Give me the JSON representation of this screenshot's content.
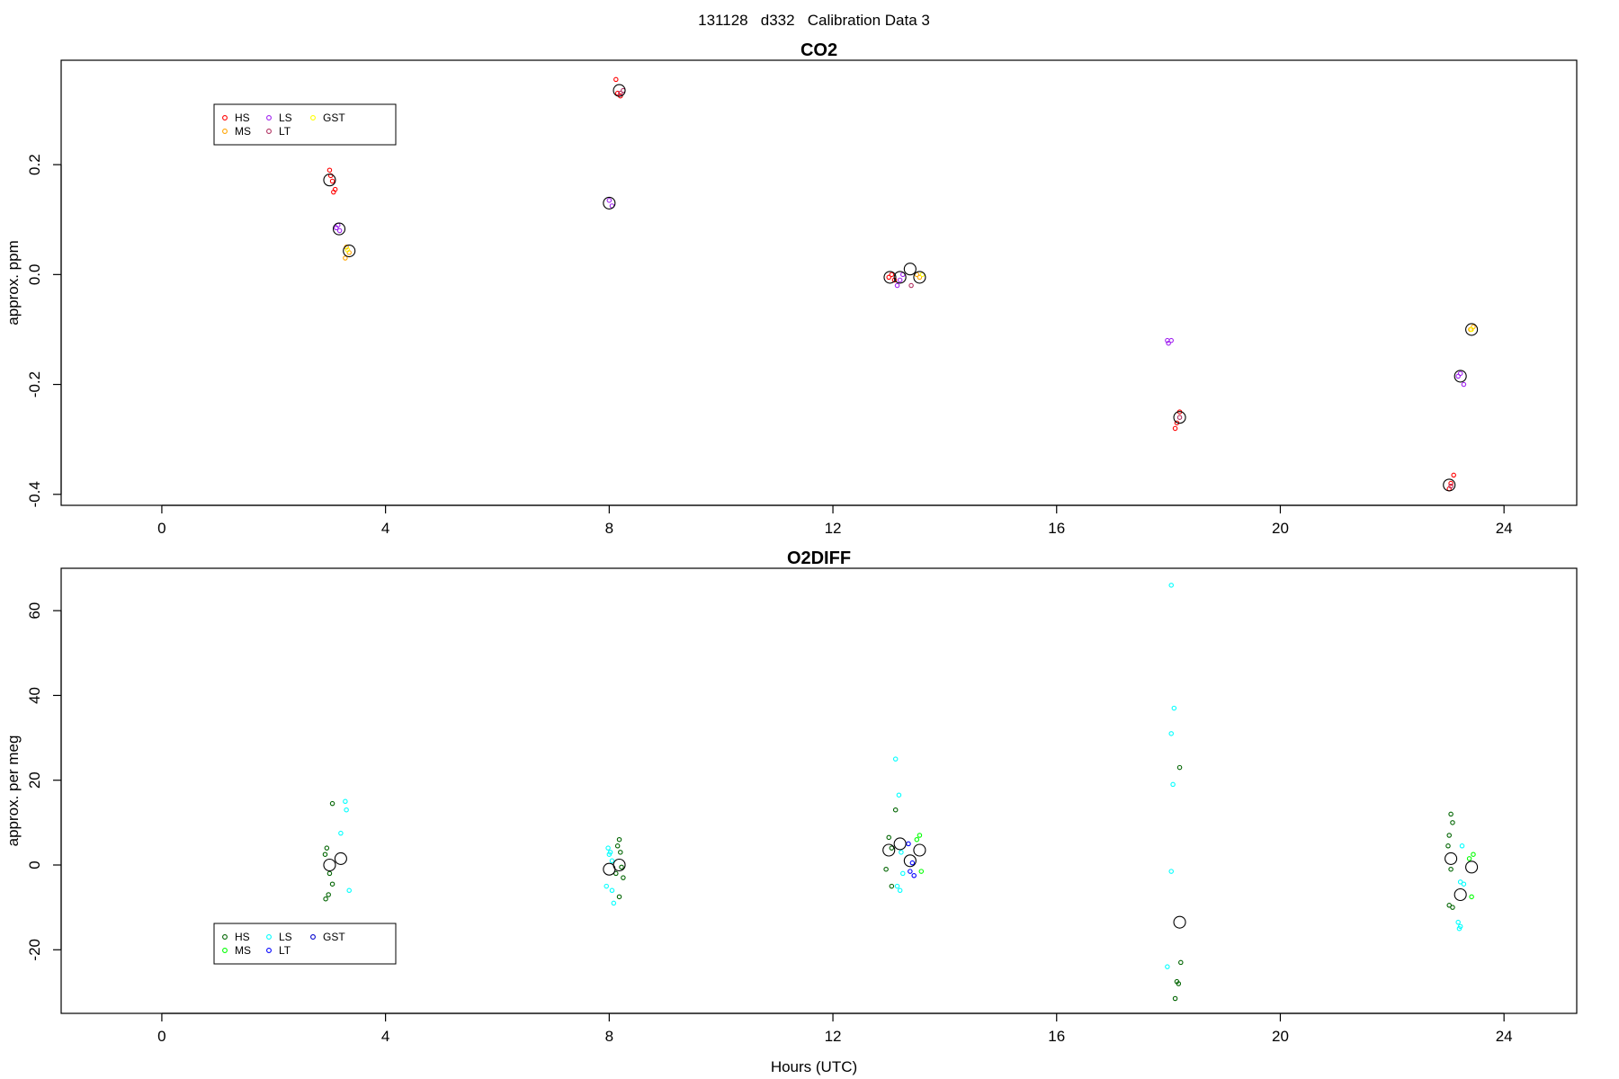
{
  "figure": {
    "suptitle": "131128   d332   Calibration Data 3",
    "xlabel": "Hours (UTC)"
  },
  "chart_data": [
    {
      "type": "scatter",
      "title": "CO2",
      "xlabel": "",
      "ylabel": "approx. ppm",
      "xlim": [
        -1.8,
        25.3
      ],
      "ylim": [
        -0.42,
        0.39
      ],
      "xticks": [
        0,
        4,
        8,
        12,
        16,
        20,
        24
      ],
      "yticks": [
        -0.4,
        -0.2,
        0.0,
        0.2
      ],
      "ytick_labels": [
        "-0.4",
        "-0.2",
        "0.0",
        "0.2"
      ],
      "grid": false,
      "legend": {
        "placement": "top-left",
        "entries": [
          {
            "label": "HS",
            "color": "#ff0000"
          },
          {
            "label": "MS",
            "color": "#ffa500"
          },
          {
            "label": "LS",
            "color": "#a020f0"
          },
          {
            "label": "LT",
            "color": "#b03060"
          },
          {
            "label": "GST",
            "color": "#ffff00"
          }
        ]
      },
      "series": [
        {
          "label": "HS",
          "color": "#ff0000",
          "points": [
            [
              3.0,
              0.19
            ],
            [
              3.02,
              0.18
            ],
            [
              3.05,
              0.17
            ],
            [
              3.07,
              0.15
            ],
            [
              3.1,
              0.155
            ],
            [
              8.12,
              0.355
            ],
            [
              8.15,
              0.33
            ],
            [
              8.2,
              0.325
            ],
            [
              13.05,
              0.0
            ],
            [
              13.1,
              -0.01
            ],
            [
              13.0,
              -0.005
            ],
            [
              18.2,
              -0.25
            ],
            [
              18.15,
              -0.27
            ],
            [
              18.12,
              -0.28
            ],
            [
              23.1,
              -0.365
            ],
            [
              23.05,
              -0.38
            ],
            [
              23.02,
              -0.39
            ]
          ]
        },
        {
          "label": "MS",
          "color": "#ffa500",
          "points": [
            [
              3.3,
              0.05
            ],
            [
              3.35,
              0.04
            ],
            [
              3.28,
              0.03
            ],
            [
              13.55,
              -0.005
            ],
            [
              13.5,
              0.0
            ],
            [
              23.4,
              -0.1
            ],
            [
              23.45,
              -0.095
            ]
          ]
        },
        {
          "label": "LS",
          "color": "#a020f0",
          "points": [
            [
              3.15,
              0.09
            ],
            [
              3.18,
              0.08
            ],
            [
              3.12,
              0.085
            ],
            [
              8.0,
              0.135
            ],
            [
              8.05,
              0.125
            ],
            [
              13.2,
              -0.01
            ],
            [
              13.15,
              -0.02
            ],
            [
              13.25,
              0.0
            ],
            [
              17.98,
              -0.12
            ],
            [
              18.05,
              -0.12
            ],
            [
              18.0,
              -0.125
            ],
            [
              23.22,
              -0.18
            ],
            [
              23.28,
              -0.2
            ],
            [
              23.18,
              -0.185
            ]
          ]
        },
        {
          "label": "LT",
          "color": "#b03060",
          "points": [
            [
              8.2,
              0.33
            ],
            [
              8.25,
              0.335
            ],
            [
              13.4,
              -0.02
            ],
            [
              18.2,
              -0.26
            ],
            [
              23.05,
              -0.385
            ]
          ]
        },
        {
          "label": "GST",
          "color": "#ffff00",
          "points": [
            [
              3.32,
              0.045
            ],
            [
              13.6,
              0.0
            ],
            [
              23.42,
              -0.1
            ]
          ]
        }
      ],
      "means": [
        [
          3.0,
          0.172
        ],
        [
          3.17,
          0.083
        ],
        [
          3.35,
          0.043
        ],
        [
          8.0,
          0.13
        ],
        [
          8.18,
          0.335
        ],
        [
          13.02,
          -0.005
        ],
        [
          13.2,
          -0.005
        ],
        [
          13.38,
          0.01
        ],
        [
          13.55,
          -0.005
        ],
        [
          18.2,
          -0.26
        ],
        [
          23.02,
          -0.383
        ],
        [
          23.22,
          -0.185
        ],
        [
          23.42,
          -0.1
        ]
      ]
    },
    {
      "type": "scatter",
      "title": "O2DIFF",
      "xlabel": "Hours (UTC)",
      "ylabel": "approx. per meg",
      "xlim": [
        -1.8,
        25.3
      ],
      "ylim": [
        -35,
        70
      ],
      "xticks": [
        0,
        4,
        8,
        12,
        16,
        20,
        24
      ],
      "yticks": [
        -20,
        0,
        20,
        40,
        60
      ],
      "ytick_labels": [
        "-20",
        "0",
        "20",
        "40",
        "60"
      ],
      "grid": false,
      "legend": {
        "placement": "bottom-left",
        "entries": [
          {
            "label": "HS",
            "color": "#006400"
          },
          {
            "label": "MS",
            "color": "#00ff00"
          },
          {
            "label": "LS",
            "color": "#00ffff"
          },
          {
            "label": "LT",
            "color": "#0000ff"
          },
          {
            "label": "GST",
            "color": "#0000cd"
          }
        ]
      },
      "series": [
        {
          "label": "HS",
          "color": "#006400",
          "points": [
            [
              3.05,
              14.5
            ],
            [
              2.95,
              4.0
            ],
            [
              2.92,
              2.5
            ],
            [
              3.0,
              -2.0
            ],
            [
              3.05,
              -4.5
            ],
            [
              2.98,
              -7.0
            ],
            [
              2.93,
              -8.0
            ],
            [
              8.18,
              6.0
            ],
            [
              8.15,
              4.5
            ],
            [
              8.2,
              3.0
            ],
            [
              8.22,
              -0.5
            ],
            [
              8.12,
              -2.0
            ],
            [
              8.25,
              -3.0
            ],
            [
              8.18,
              -7.5
            ],
            [
              13.12,
              13.0
            ],
            [
              13.0,
              6.5
            ],
            [
              13.05,
              4.0
            ],
            [
              12.95,
              -1.0
            ],
            [
              13.05,
              -5.0
            ],
            [
              18.2,
              23.0
            ],
            [
              18.22,
              -23.0
            ],
            [
              18.15,
              -27.5
            ],
            [
              18.18,
              -28.0
            ],
            [
              18.12,
              -31.5
            ],
            [
              23.05,
              12.0
            ],
            [
              23.08,
              10.0
            ],
            [
              23.02,
              7.0
            ],
            [
              23.0,
              4.5
            ],
            [
              23.05,
              -1.0
            ],
            [
              23.02,
              -9.5
            ],
            [
              23.08,
              -10.0
            ]
          ]
        },
        {
          "label": "MS",
          "color": "#00ff00",
          "points": [
            [
              13.55,
              7.0
            ],
            [
              13.5,
              6.0
            ],
            [
              13.58,
              -1.5
            ],
            [
              23.45,
              2.5
            ],
            [
              23.38,
              1.5
            ],
            [
              23.42,
              -7.5
            ]
          ]
        },
        {
          "label": "LS",
          "color": "#00ffff",
          "points": [
            [
              3.28,
              15.0
            ],
            [
              3.3,
              13.0
            ],
            [
              3.2,
              7.5
            ],
            [
              3.35,
              -6.0
            ],
            [
              7.98,
              4.0
            ],
            [
              8.02,
              3.0
            ],
            [
              8.0,
              2.5
            ],
            [
              8.05,
              1.0
            ],
            [
              7.95,
              -5.0
            ],
            [
              8.05,
              -6.0
            ],
            [
              8.08,
              -9.0
            ],
            [
              13.12,
              25.0
            ],
            [
              13.18,
              16.5
            ],
            [
              13.22,
              3.0
            ],
            [
              13.25,
              -2.0
            ],
            [
              13.15,
              -5.0
            ],
            [
              13.2,
              -6.0
            ],
            [
              18.05,
              66.0
            ],
            [
              18.1,
              37.0
            ],
            [
              18.05,
              31.0
            ],
            [
              18.08,
              19.0
            ],
            [
              18.05,
              -1.5
            ],
            [
              17.98,
              -24.0
            ],
            [
              23.25,
              4.5
            ],
            [
              23.22,
              -4.0
            ],
            [
              23.28,
              -4.5
            ],
            [
              23.18,
              -13.5
            ],
            [
              23.22,
              -14.5
            ],
            [
              23.2,
              -15.0
            ]
          ]
        },
        {
          "label": "LT",
          "color": "#0000ff",
          "points": [
            [
              13.35,
              5.0
            ],
            [
              13.42,
              0.5
            ],
            [
              13.38,
              -1.5
            ],
            [
              13.45,
              -2.5
            ]
          ]
        },
        {
          "label": "GST",
          "color": "#0000cd",
          "points": []
        }
      ],
      "means": [
        [
          3.0,
          0.0
        ],
        [
          3.2,
          1.5
        ],
        [
          8.0,
          -1.0
        ],
        [
          8.18,
          0.0
        ],
        [
          13.0,
          3.5
        ],
        [
          13.2,
          5.0
        ],
        [
          13.38,
          1.0
        ],
        [
          13.55,
          3.5
        ],
        [
          18.2,
          -13.5
        ],
        [
          23.05,
          1.5
        ],
        [
          23.22,
          -7.0
        ],
        [
          23.42,
          -0.5
        ]
      ]
    }
  ]
}
